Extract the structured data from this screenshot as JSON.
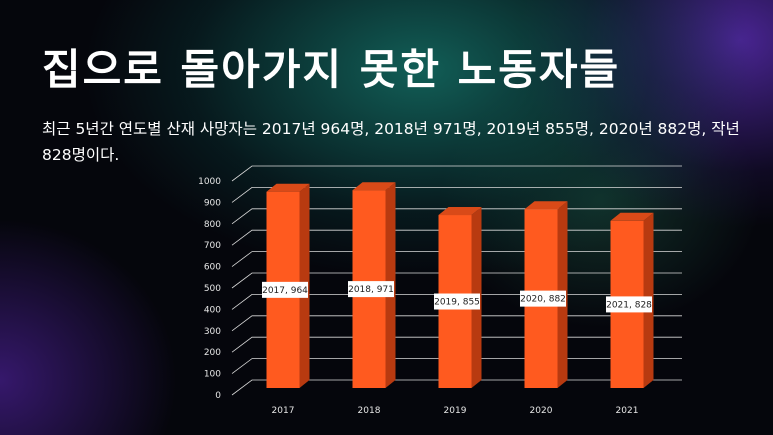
{
  "slide": {
    "title": "집으로 돌아가지 못한 노동자들",
    "subtitle": "최근 5년간 연도별 산재 사망자는 2017년 964명, 2018년 971명, 2019년 855명, 2020년 882명, 작년 828명이다."
  },
  "colors": {
    "bar_front": "#ff5a1f",
    "bar_side": "#b83a10",
    "bar_top": "#d94a18",
    "gridline": "#d9d9d9",
    "text": "#ffffff"
  },
  "chart_data": {
    "type": "bar",
    "categories": [
      "2017",
      "2018",
      "2019",
      "2020",
      "2021"
    ],
    "values": [
      964,
      971,
      855,
      882,
      828
    ],
    "data_labels": [
      "2017, 964",
      "2018, 971",
      "2019, 855",
      "2020, 882",
      "2021, 828"
    ],
    "yticks": [
      0,
      100,
      200,
      300,
      400,
      500,
      600,
      700,
      800,
      900,
      1000
    ],
    "ylim": [
      0,
      1000
    ],
    "grid": true,
    "legend": "none",
    "style": "3d-column"
  }
}
